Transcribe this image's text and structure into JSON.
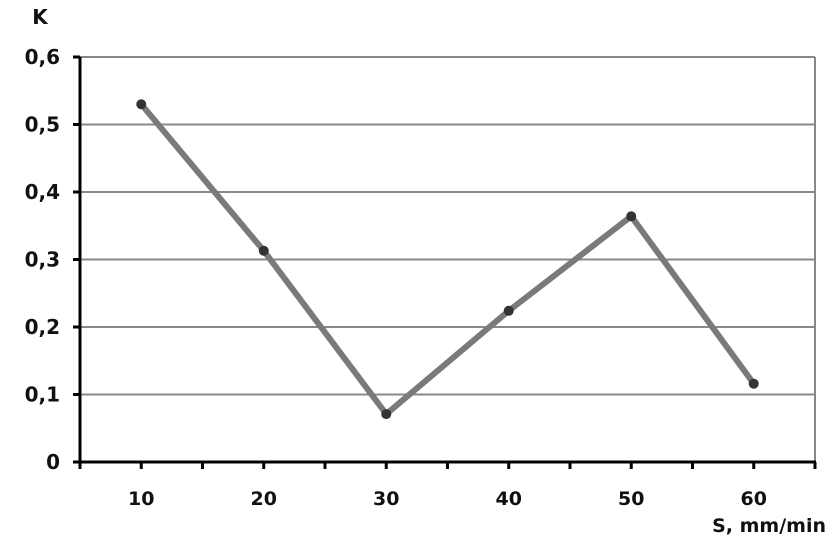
{
  "chart_data": {
    "type": "line",
    "title": "",
    "xlabel": "S, mm/min",
    "ylabel": "K",
    "categories": [
      "10",
      "20",
      "30",
      "40",
      "50",
      "60"
    ],
    "x": [
      10,
      20,
      30,
      40,
      50,
      60
    ],
    "values": [
      0.53,
      0.313,
      0.071,
      0.224,
      0.364,
      0.116
    ],
    "ylim": [
      0,
      0.6
    ],
    "yticks": [
      "0",
      "0,1",
      "0,2",
      "0,3",
      "0,4",
      "0,5",
      "0,6"
    ],
    "grid": "horizontal",
    "legend": "none",
    "colors": {
      "line": "#7a7a7a",
      "marker": "#333333",
      "grid": "#888888",
      "axis": "#000000"
    }
  }
}
